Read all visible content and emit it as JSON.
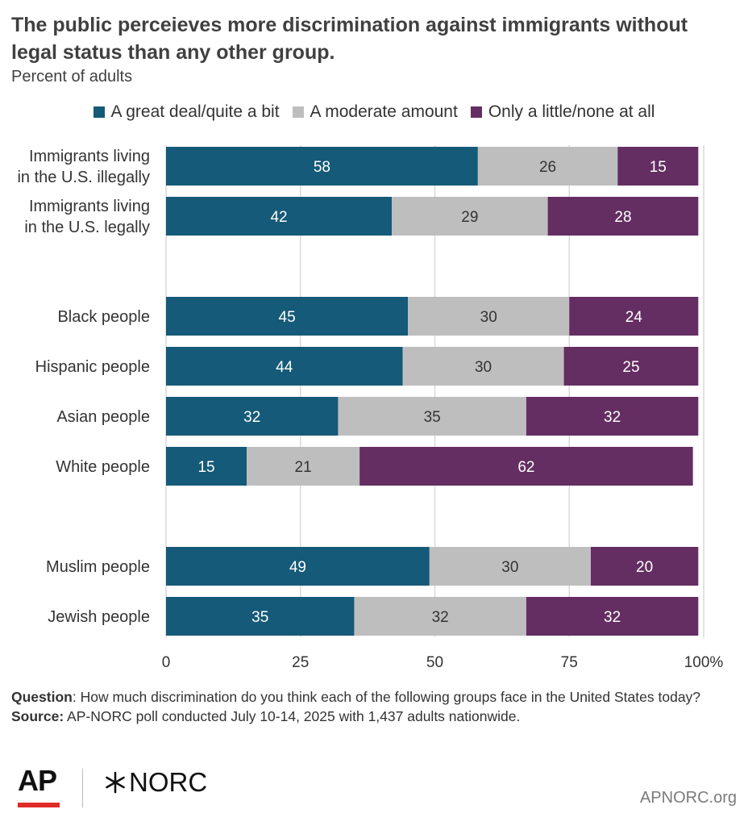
{
  "header": {
    "title": "The public perceieves more discrimination against immigrants without legal status than any other group.",
    "subtitle": "Percent of adults"
  },
  "colors": {
    "great": "#155a78",
    "moderate": "#bebebe",
    "little": "#642e62",
    "grid": "#d9d9d9"
  },
  "chart_data": {
    "type": "bar",
    "orientation": "horizontal",
    "stacked": true,
    "xlim": [
      0,
      100
    ],
    "x_ticks": [
      {
        "value": 0,
        "label": "0"
      },
      {
        "value": 25,
        "label": "25"
      },
      {
        "value": 50,
        "label": "50"
      },
      {
        "value": 75,
        "label": "75"
      },
      {
        "value": 100,
        "label": "100%"
      }
    ],
    "grid": true,
    "legend_position": "top-center",
    "series": [
      {
        "name": "A great deal/quite a bit",
        "color": "#155a78",
        "label_color": "#ffffff"
      },
      {
        "name": "A moderate amount",
        "color": "#bebebe",
        "label_color": "#333333"
      },
      {
        "name": "Only a little/none at all",
        "color": "#642e62",
        "label_color": "#ffffff"
      }
    ],
    "groups": [
      {
        "categories": [
          {
            "label": [
              "Immigrants living",
              "in the U.S. illegally"
            ],
            "values": [
              58,
              26,
              15
            ]
          },
          {
            "label": [
              "Immigrants living",
              "in the U.S. legally"
            ],
            "values": [
              42,
              29,
              28
            ]
          }
        ]
      },
      {
        "categories": [
          {
            "label": [
              "Black people"
            ],
            "values": [
              45,
              30,
              24
            ]
          },
          {
            "label": [
              "Hispanic people"
            ],
            "values": [
              44,
              30,
              25
            ]
          },
          {
            "label": [
              "Asian people"
            ],
            "values": [
              32,
              35,
              32
            ]
          },
          {
            "label": [
              "White people"
            ],
            "values": [
              15,
              21,
              62
            ]
          }
        ]
      },
      {
        "categories": [
          {
            "label": [
              "Muslim people"
            ],
            "values": [
              49,
              30,
              20
            ]
          },
          {
            "label": [
              "Jewish people"
            ],
            "values": [
              35,
              32,
              32
            ]
          }
        ]
      }
    ]
  },
  "footer": {
    "question_label": "Question",
    "question_text": ": How much discrimination do you think each of the following groups face in the United States today?",
    "source_label": "Source:",
    "source_text": " AP-NORC poll conducted July 10-14, 2025 with 1,437 adults nationwide.",
    "logo_ap": "AP",
    "logo_norc": "NORC",
    "website": "APNORC.org"
  }
}
